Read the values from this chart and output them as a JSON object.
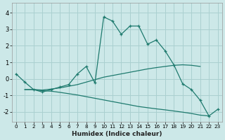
{
  "xlabel": "Humidex (Indice chaleur)",
  "background_color": "#cce8e8",
  "line_color": "#1e7a6e",
  "grid_color": "#aad0d0",
  "xlim": [
    -0.5,
    23.5
  ],
  "ylim": [
    -2.6,
    4.6
  ],
  "xticks": [
    0,
    1,
    2,
    3,
    4,
    5,
    6,
    7,
    8,
    9,
    10,
    11,
    12,
    13,
    14,
    15,
    16,
    17,
    18,
    19,
    20,
    21,
    22,
    23
  ],
  "yticks": [
    -2,
    -1,
    0,
    1,
    2,
    3,
    4
  ],
  "series": [
    {
      "x": [
        0,
        1,
        2,
        3,
        4,
        5,
        6,
        7,
        8,
        9,
        10,
        11,
        12,
        13,
        14,
        15,
        16,
        17,
        18,
        19,
        20,
        21,
        22,
        23
      ],
      "y": [
        0.3,
        -0.2,
        -0.65,
        -0.8,
        -0.65,
        -0.5,
        -0.35,
        0.3,
        0.75,
        -0.25,
        3.75,
        3.5,
        2.7,
        3.2,
        3.2,
        2.1,
        2.35,
        1.7,
        0.85,
        -0.3,
        -0.65,
        -1.3,
        -2.25,
        -1.85
      ],
      "marker": true
    },
    {
      "x": [
        1,
        2,
        3,
        4,
        5,
        6,
        7,
        8,
        9,
        10,
        11,
        12,
        13,
        14,
        15,
        16,
        17,
        18,
        19,
        20,
        21
      ],
      "y": [
        -0.65,
        -0.65,
        -0.68,
        -0.62,
        -0.55,
        -0.45,
        -0.35,
        -0.2,
        -0.05,
        0.1,
        0.2,
        0.3,
        0.4,
        0.5,
        0.6,
        0.68,
        0.75,
        0.82,
        0.85,
        0.82,
        0.75
      ],
      "marker": false
    },
    {
      "x": [
        1,
        2,
        3,
        4,
        5,
        6,
        7,
        8,
        9,
        10,
        11,
        12,
        13,
        14,
        15,
        16,
        17,
        18,
        19,
        20,
        21,
        22
      ],
      "y": [
        -0.65,
        -0.65,
        -0.72,
        -0.75,
        -0.82,
        -0.9,
        -0.98,
        -1.08,
        -1.18,
        -1.28,
        -1.38,
        -1.48,
        -1.58,
        -1.68,
        -1.75,
        -1.82,
        -1.88,
        -1.95,
        -2.02,
        -2.1,
        -2.2,
        -2.25
      ],
      "marker": false
    }
  ]
}
